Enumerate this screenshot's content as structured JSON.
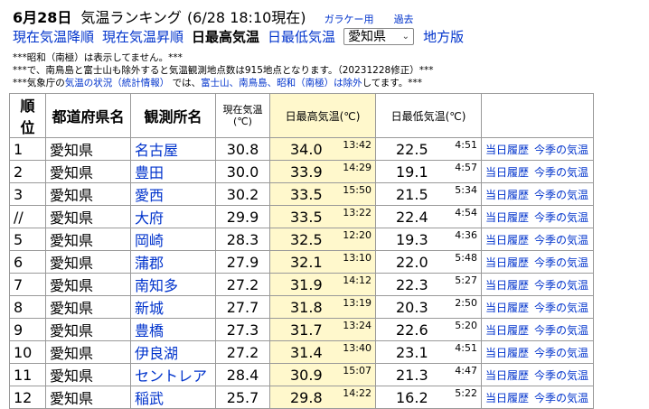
{
  "header": {
    "date": "6月28日",
    "title": "気温ランキング",
    "timestamp": "(6/28 18:10現在)",
    "garake_link": "ガラケー用",
    "past_link": "過去"
  },
  "nav": {
    "sort_desc": "現在気温降順",
    "sort_asc": "現在気温昇順",
    "current": "日最高気温",
    "min_temp": "日最低気温",
    "prefecture_selected": "愛知県",
    "region_version": "地方版"
  },
  "notes": {
    "line1": "***昭和（南極）は表示してません。***",
    "line2": "***で、南鳥島と富士山も除外すると気温観測地点数は915地点となります。（20231228修正）***",
    "line3_pre": "***気象庁の",
    "line3_link1": "気温の状況（統計情報）",
    "line3_mid": "では、",
    "line3_link2": "富士山、南鳥島、昭和（南極）は除外",
    "line3_post": "してます。***"
  },
  "table": {
    "headers": {
      "rank": "順位",
      "prefecture": "都道府県名",
      "station": "観測所名",
      "now_temp_line1": "現在気温",
      "now_temp_line2": "(℃)",
      "max_temp": "日最高気温(℃)",
      "min_temp": "日最低気温(℃)"
    },
    "link_history": "当日履歴",
    "link_season": "今季の気温",
    "rows": [
      {
        "rank": "1",
        "pref": "愛知県",
        "station": "名古屋",
        "now": "30.8",
        "max": "34.0",
        "max_time": "13:42",
        "min": "22.5",
        "min_time": "4:51"
      },
      {
        "rank": "2",
        "pref": "愛知県",
        "station": "豊田",
        "now": "30.0",
        "max": "33.9",
        "max_time": "14:29",
        "min": "19.1",
        "min_time": "4:57"
      },
      {
        "rank": "3",
        "pref": "愛知県",
        "station": "愛西",
        "now": "30.2",
        "max": "33.5",
        "max_time": "15:50",
        "min": "21.5",
        "min_time": "5:34"
      },
      {
        "rank": "//",
        "pref": "愛知県",
        "station": "大府",
        "now": "29.9",
        "max": "33.5",
        "max_time": "13:22",
        "min": "22.4",
        "min_time": "4:54"
      },
      {
        "rank": "5",
        "pref": "愛知県",
        "station": "岡崎",
        "now": "28.3",
        "max": "32.5",
        "max_time": "12:20",
        "min": "19.3",
        "min_time": "4:36"
      },
      {
        "rank": "6",
        "pref": "愛知県",
        "station": "蒲郡",
        "now": "27.9",
        "max": "32.1",
        "max_time": "13:10",
        "min": "22.0",
        "min_time": "5:48"
      },
      {
        "rank": "7",
        "pref": "愛知県",
        "station": "南知多",
        "now": "27.2",
        "max": "31.9",
        "max_time": "14:12",
        "min": "22.3",
        "min_time": "5:27"
      },
      {
        "rank": "8",
        "pref": "愛知県",
        "station": "新城",
        "now": "27.7",
        "max": "31.8",
        "max_time": "13:19",
        "min": "20.3",
        "min_time": "2:50"
      },
      {
        "rank": "9",
        "pref": "愛知県",
        "station": "豊橋",
        "now": "27.3",
        "max": "31.7",
        "max_time": "13:24",
        "min": "22.6",
        "min_time": "5:20"
      },
      {
        "rank": "10",
        "pref": "愛知県",
        "station": "伊良湖",
        "now": "27.2",
        "max": "31.4",
        "max_time": "13:40",
        "min": "23.1",
        "min_time": "4:51"
      },
      {
        "rank": "11",
        "pref": "愛知県",
        "station": "セントレア",
        "now": "28.4",
        "max": "30.9",
        "max_time": "15:07",
        "min": "21.3",
        "min_time": "4:47"
      },
      {
        "rank": "12",
        "pref": "愛知県",
        "station": "稲武",
        "now": "25.7",
        "max": "29.8",
        "max_time": "14:22",
        "min": "16.2",
        "min_time": "5:22"
      }
    ]
  }
}
